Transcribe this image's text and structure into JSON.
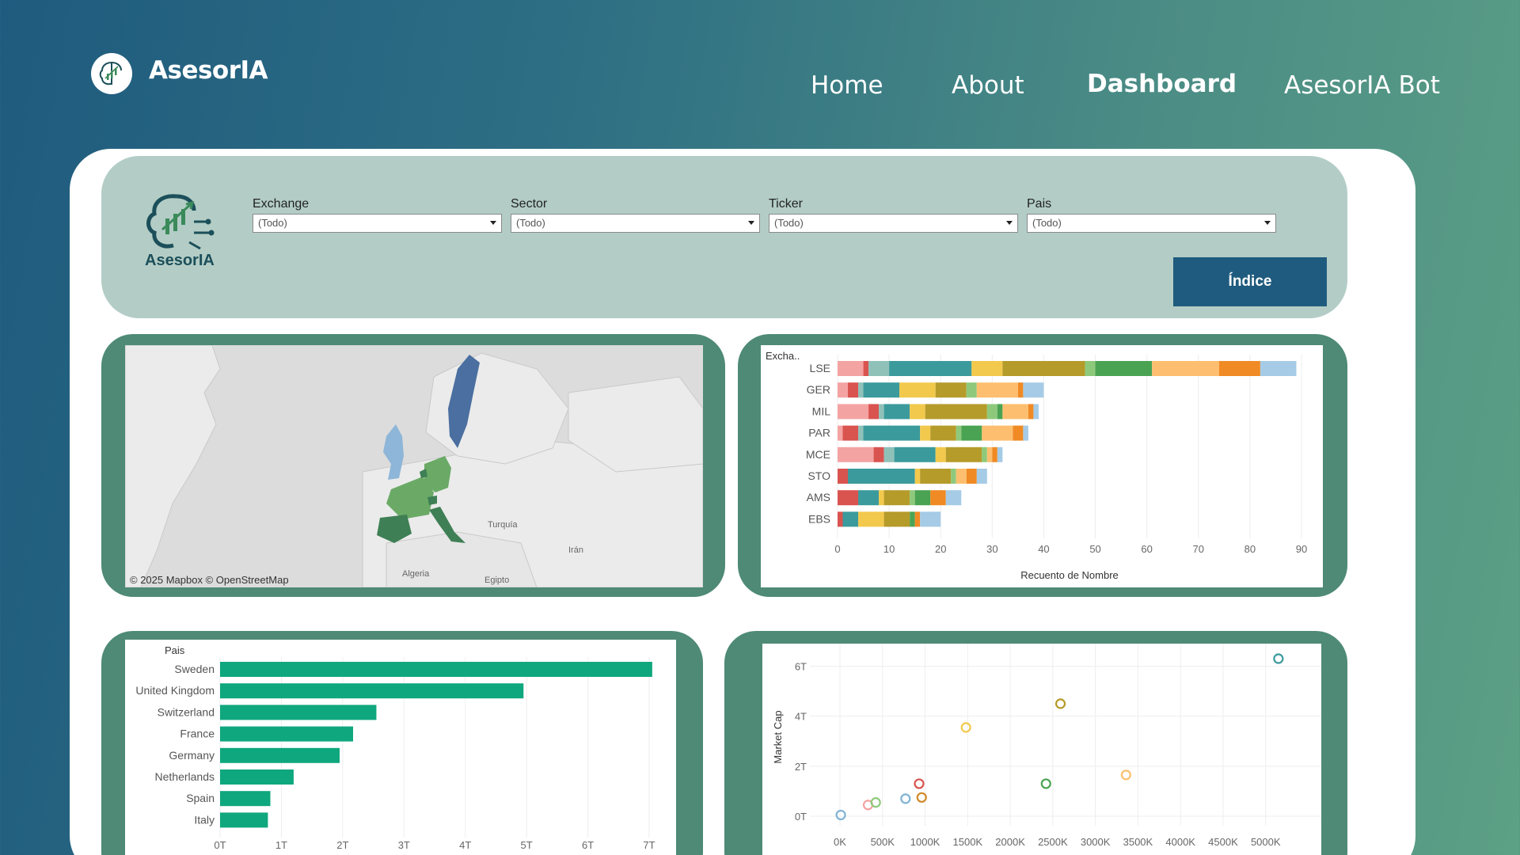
{
  "header": {
    "brand": "AsesorIA",
    "nav": [
      {
        "label": "Home",
        "active": false
      },
      {
        "label": "About",
        "active": false
      },
      {
        "label": "Dashboard",
        "active": true
      },
      {
        "label": "AsesorIA Bot",
        "active": false
      }
    ]
  },
  "filters": {
    "logo_text": "AsesorIA",
    "items": [
      {
        "label": "Exchange",
        "value": "(Todo)"
      },
      {
        "label": "Sector",
        "value": "(Todo)"
      },
      {
        "label": "Ticker",
        "value": "(Todo)"
      },
      {
        "label": "Pais",
        "value": "(Todo)"
      }
    ],
    "indice_button": "Índice"
  },
  "map": {
    "credit": "© 2025 Mapbox  © OpenStreetMap",
    "labels": [
      "Turquía",
      "Irán",
      "Algeria",
      "Egipto"
    ],
    "colors": {
      "sweden": "#4a6fa0",
      "uk": "#8db6d8",
      "green_dark": "#3f7f55",
      "green_light": "#6aaa66"
    }
  },
  "chart_data": [
    {
      "type": "bar",
      "orientation": "horizontal",
      "stacked": true,
      "header": "Excha..",
      "xlabel": "Recuento de Nombre",
      "xlim": [
        0,
        90
      ],
      "xticks": [
        0,
        10,
        20,
        30,
        40,
        50,
        60,
        70,
        80,
        90
      ],
      "categories": [
        "LSE",
        "GER",
        "MIL",
        "PAR",
        "MCE",
        "STO",
        "AMS",
        "EBS"
      ],
      "segment_colors": [
        "#f4a3a3",
        "#d9534f",
        "#8fc1b9",
        "#3b9a9c",
        "#f2c94c",
        "#b59b2a",
        "#8ec97b",
        "#4aa352",
        "#fdbf6f",
        "#f08a24",
        "#a6cbe6"
      ],
      "segments": [
        [
          5,
          1,
          4,
          16,
          6,
          16,
          2,
          11,
          13,
          8,
          7
        ],
        [
          2,
          2,
          1,
          7,
          7,
          6,
          2,
          0,
          8,
          1,
          4
        ],
        [
          6,
          2,
          1,
          5,
          3,
          12,
          2,
          1,
          5,
          1,
          1
        ],
        [
          1,
          3,
          1,
          11,
          2,
          5,
          1,
          4,
          6,
          2,
          1
        ],
        [
          7,
          2,
          2,
          8,
          2,
          7,
          1,
          0,
          1,
          1,
          1
        ],
        [
          0,
          2,
          0,
          13,
          1,
          6,
          1,
          0,
          2,
          2,
          2
        ],
        [
          0,
          4,
          0,
          4,
          1,
          5,
          1,
          3,
          0,
          3,
          3
        ],
        [
          0,
          1,
          0,
          3,
          5,
          5,
          0,
          1,
          0,
          1,
          4
        ]
      ]
    },
    {
      "type": "bar",
      "orientation": "horizontal",
      "header": "Pais",
      "xlim": [
        0,
        7
      ],
      "xticks": [
        "0T",
        "1T",
        "2T",
        "3T",
        "4T",
        "5T",
        "6T",
        "7T"
      ],
      "categories": [
        "Sweden",
        "United Kingdom",
        "Switzerland",
        "France",
        "Germany",
        "Netherlands",
        "Spain",
        "Italy"
      ],
      "values": [
        7.05,
        4.95,
        2.55,
        2.17,
        1.95,
        1.2,
        0.82,
        0.78
      ],
      "color": "#0fa77e"
    },
    {
      "type": "scatter",
      "ylabel": "Market Cap",
      "xlim": [
        0,
        5300
      ],
      "ylim": [
        0,
        6.3
      ],
      "xticks": [
        "0K",
        "500K",
        "1000K",
        "1500K",
        "2000K",
        "2500K",
        "3000K",
        "3500K",
        "4000K",
        "4500K",
        "5000K"
      ],
      "yticks": [
        "0T",
        "2T",
        "4T",
        "6T"
      ],
      "points": [
        {
          "x": 10,
          "y": 0.05,
          "color": "#7fb3d5"
        },
        {
          "x": 330,
          "y": 0.45,
          "color": "#f4a3a3"
        },
        {
          "x": 420,
          "y": 0.55,
          "color": "#8ec97b"
        },
        {
          "x": 770,
          "y": 0.7,
          "color": "#7fb3d5"
        },
        {
          "x": 930,
          "y": 1.3,
          "color": "#d9534f"
        },
        {
          "x": 960,
          "y": 0.75,
          "color": "#d08a2a"
        },
        {
          "x": 1480,
          "y": 3.55,
          "color": "#f2c94c"
        },
        {
          "x": 2420,
          "y": 1.3,
          "color": "#4aa352"
        },
        {
          "x": 2590,
          "y": 4.5,
          "color": "#b59b2a"
        },
        {
          "x": 3360,
          "y": 1.65,
          "color": "#fdbf6f"
        },
        {
          "x": 5150,
          "y": 6.3,
          "color": "#3b9a9c"
        }
      ]
    }
  ]
}
